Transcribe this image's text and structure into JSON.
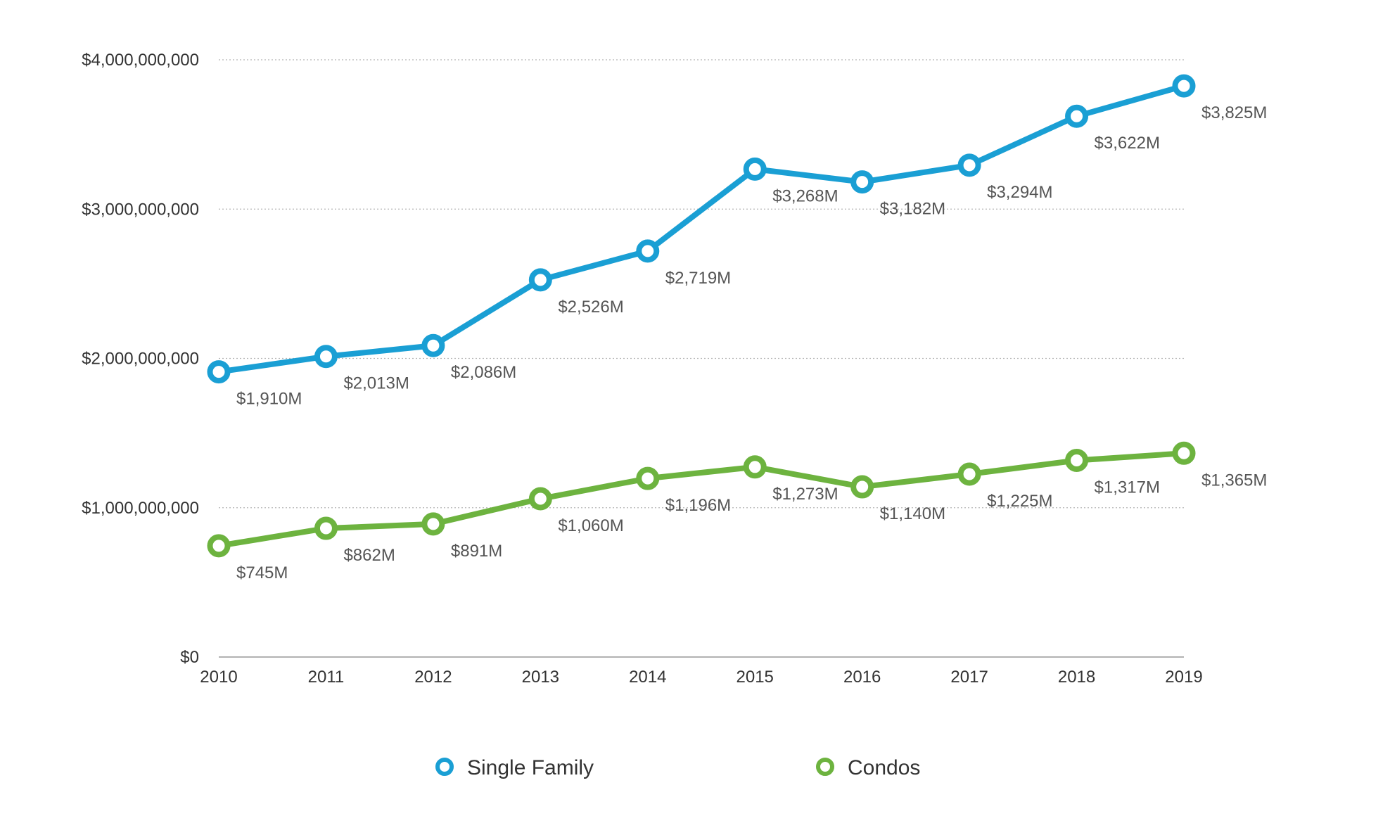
{
  "chart_data": {
    "type": "line",
    "x": [
      "2010",
      "2011",
      "2012",
      "2013",
      "2014",
      "2015",
      "2016",
      "2017",
      "2018",
      "2019"
    ],
    "ylim": [
      0,
      4000000000
    ],
    "yticks": [
      0,
      1000000000,
      2000000000,
      3000000000,
      4000000000
    ],
    "ytick_labels": [
      "$0",
      "$1,000,000,000",
      "$2,000,000,000",
      "$3,000,000,000",
      "$4,000,000,000"
    ],
    "grid": "horizontal dotted",
    "legend": "bottom",
    "series": [
      {
        "name": "Single Family",
        "color": "#1a9fd4",
        "values": [
          1910000000,
          2013000000,
          2086000000,
          2526000000,
          2719000000,
          3268000000,
          3182000000,
          3294000000,
          3622000000,
          3825000000
        ],
        "labels": [
          "$1,910M",
          "$2,013M",
          "$2,086M",
          "$2,526M",
          "$2,719M",
          "$3,268M",
          "$3,182M",
          "$3,294M",
          "$3,622M",
          "$3,825M"
        ]
      },
      {
        "name": "Condos",
        "color": "#6db33f",
        "values": [
          745000000,
          862000000,
          891000000,
          1060000000,
          1196000000,
          1273000000,
          1140000000,
          1225000000,
          1317000000,
          1365000000
        ],
        "labels": [
          "$745M",
          "$862M",
          "$891M",
          "$1,060M",
          "$1,196M",
          "$1,273M",
          "$1,140M",
          "$1,225M",
          "$1,317M",
          "$1,365M"
        ]
      }
    ]
  }
}
